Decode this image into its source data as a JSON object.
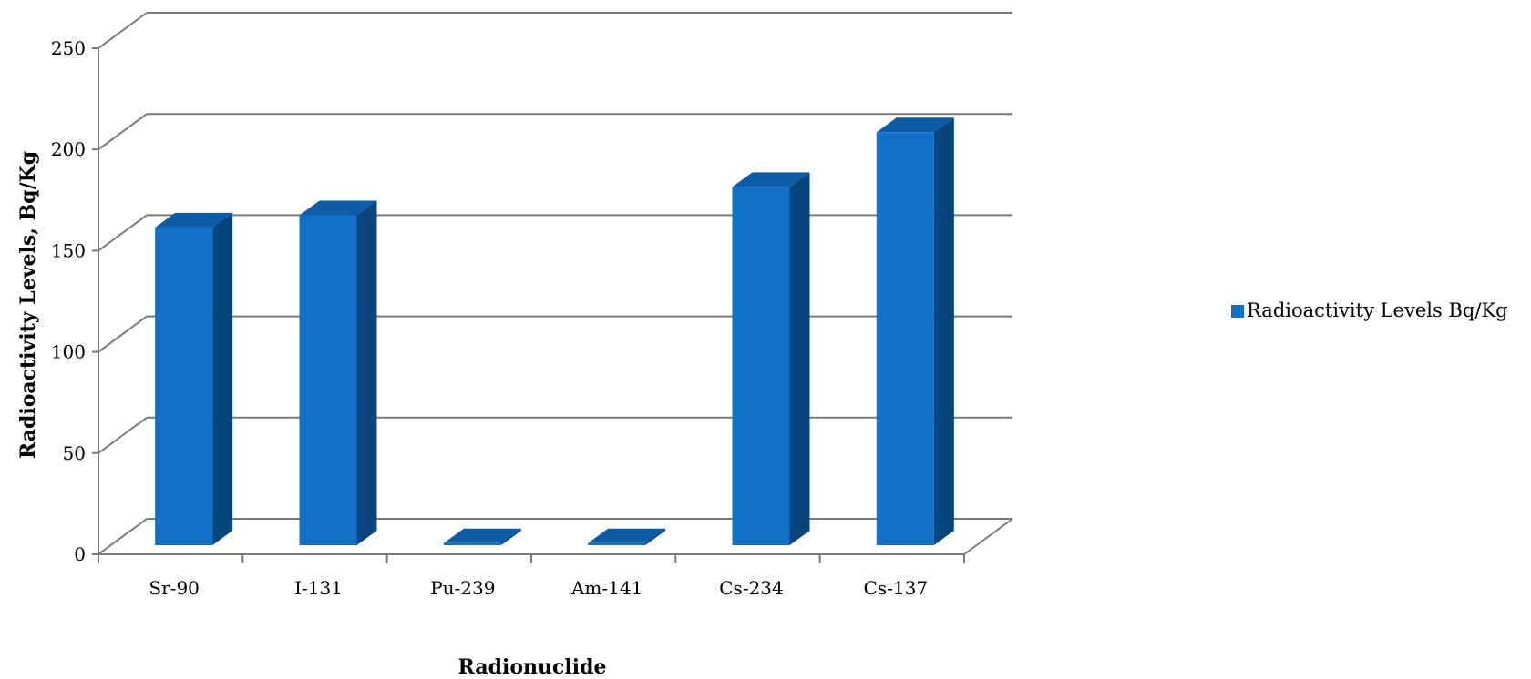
{
  "chart_data": {
    "type": "bar",
    "categories": [
      "Sr-90",
      "I-131",
      "Pu-239",
      "Am-141",
      "Cs-234",
      "Cs-137"
    ],
    "series": [
      {
        "name": "Radioactivity Levels Bq/Kg",
        "values": [
          157,
          163,
          1,
          1,
          177,
          204
        ]
      }
    ],
    "xlabel": "Radionuclide",
    "ylabel": "Radioactivity Levels, Bq/Kg",
    "ylim": [
      0,
      250
    ],
    "yticks": [
      0,
      50,
      100,
      150,
      200,
      250
    ],
    "grid": true,
    "legend_position": "right",
    "colors": {
      "bar_front": "#1170C8",
      "bar_side": "#08457C",
      "bar_top": "#0C5CA6",
      "grid": "#7a7a7a"
    }
  }
}
